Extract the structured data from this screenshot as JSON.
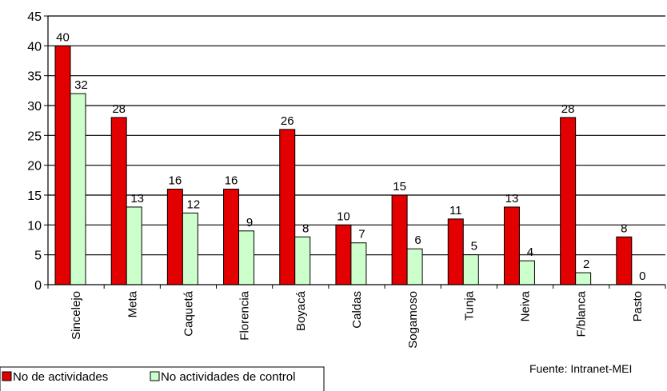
{
  "chart_data": {
    "type": "bar",
    "categories": [
      "Sincelejo",
      "Meta",
      "Caquetá",
      "Florencia",
      "Boyacá",
      "Caldas",
      "Sogamoso",
      "Tunja",
      "Neiva",
      "F/blanca",
      "Pasto"
    ],
    "series": [
      {
        "name": "No de actividades",
        "color": "#e30000",
        "values": [
          40,
          28,
          16,
          16,
          26,
          10,
          15,
          11,
          13,
          28,
          8
        ]
      },
      {
        "name": "No actividades de control",
        "color": "#ccffcc",
        "values": [
          32,
          13,
          12,
          9,
          8,
          7,
          6,
          5,
          4,
          2,
          0
        ]
      }
    ],
    "ylim": [
      0,
      45
    ],
    "yticks": [
      0,
      5,
      10,
      15,
      20,
      25,
      30,
      35,
      40,
      45
    ],
    "grid": true,
    "legend_position": "bottom-left",
    "source": "Fuente:  Intranet-MEI"
  }
}
